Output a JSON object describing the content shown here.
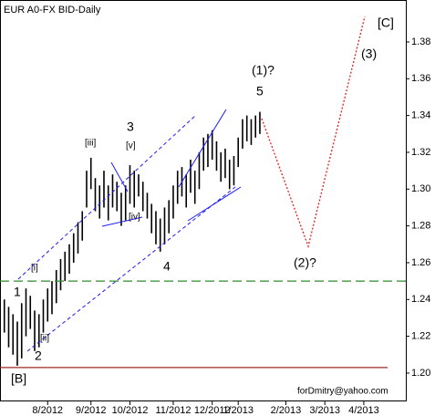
{
  "chart_data": {
    "type": "ohlc",
    "title": "EUR A0-FX BID-Daily",
    "x": [
      1,
      2,
      3,
      4,
      5,
      6,
      7,
      8,
      9,
      10,
      11,
      12,
      13,
      14,
      15,
      16,
      17,
      18,
      19,
      20,
      21,
      22,
      23,
      24,
      25,
      26,
      27,
      28,
      29,
      30,
      31,
      32,
      33,
      34,
      35,
      36,
      37,
      38,
      39,
      40,
      41,
      42,
      43,
      44,
      45,
      46,
      47,
      48,
      49,
      50,
      51,
      52,
      53,
      54,
      55,
      56,
      57,
      58,
      59,
      60
    ],
    "low": [
      1.222,
      1.214,
      1.21,
      1.204,
      1.208,
      1.22,
      1.224,
      1.212,
      1.214,
      1.222,
      1.228,
      1.232,
      1.238,
      1.245,
      1.25,
      1.254,
      1.26,
      1.265,
      1.272,
      1.29,
      1.3,
      1.288,
      1.284,
      1.29,
      1.283,
      1.29,
      1.288,
      1.28,
      1.283,
      1.292,
      1.29,
      1.296,
      1.288,
      1.284,
      1.276,
      1.27,
      1.266,
      1.27,
      1.276,
      1.284,
      1.292,
      1.296,
      1.29,
      1.298,
      1.292,
      1.3,
      1.31,
      1.312,
      1.316,
      1.31,
      1.304,
      1.306,
      1.3,
      1.302,
      1.312,
      1.322,
      1.326,
      1.324,
      1.328,
      1.33
    ],
    "high": [
      1.24,
      1.236,
      1.232,
      1.228,
      1.238,
      1.246,
      1.242,
      1.234,
      1.232,
      1.24,
      1.246,
      1.25,
      1.256,
      1.262,
      1.266,
      1.27,
      1.276,
      1.282,
      1.288,
      1.31,
      1.317,
      1.306,
      1.302,
      1.31,
      1.302,
      1.308,
      1.304,
      1.298,
      1.302,
      1.313,
      1.31,
      1.308,
      1.304,
      1.298,
      1.292,
      1.288,
      1.284,
      1.29,
      1.294,
      1.302,
      1.31,
      1.312,
      1.308,
      1.316,
      1.31,
      1.32,
      1.328,
      1.33,
      1.332,
      1.326,
      1.32,
      1.322,
      1.316,
      1.318,
      1.328,
      1.338,
      1.34,
      1.338,
      1.34,
      1.342
    ],
    "color": "#000000",
    "xlim": [
      0,
      93.7
    ],
    "xticks": [
      {
        "value": 11,
        "label": "8/2012"
      },
      {
        "value": 21,
        "label": "9/2012"
      },
      {
        "value": 30,
        "label": "10/2012"
      },
      {
        "value": 40,
        "label": "11/2012"
      },
      {
        "value": 49,
        "label": "12/2012"
      },
      {
        "value": 55,
        "label": "1/2013"
      },
      {
        "value": 66,
        "label": "2/2013"
      },
      {
        "value": 75,
        "label": "3/2013"
      },
      {
        "value": 84,
        "label": "4/2013"
      }
    ],
    "ylim": [
      1.1846,
      1.4028
    ],
    "yticks": [
      {
        "value": 1.2,
        "label": "1.20"
      },
      {
        "value": 1.22,
        "label": "1.22"
      },
      {
        "value": 1.24,
        "label": "1.24"
      },
      {
        "value": 1.26,
        "label": "1.26"
      },
      {
        "value": 1.28,
        "label": "1.28"
      },
      {
        "value": 1.3,
        "label": "1.30"
      },
      {
        "value": 1.32,
        "label": "1.32"
      },
      {
        "value": 1.34,
        "label": "1.34"
      },
      {
        "value": 1.36,
        "label": "1.36"
      },
      {
        "value": 1.38,
        "label": "1.38"
      }
    ],
    "levels": [
      {
        "value": 1.25,
        "color": "#2e8b2e",
        "dashed": true
      },
      {
        "value": 1.203,
        "color": "#a0282a",
        "dashed": false
      }
    ],
    "annotations": [
      "[C]",
      "(3)",
      "(1)?",
      "5",
      "3",
      "[iii]",
      "[v]",
      "[iv]",
      "4",
      "(2)?",
      "[i]",
      "1",
      "[ii]",
      "2",
      "[B]"
    ],
    "credit": "forDmitry@yahoo.com"
  }
}
